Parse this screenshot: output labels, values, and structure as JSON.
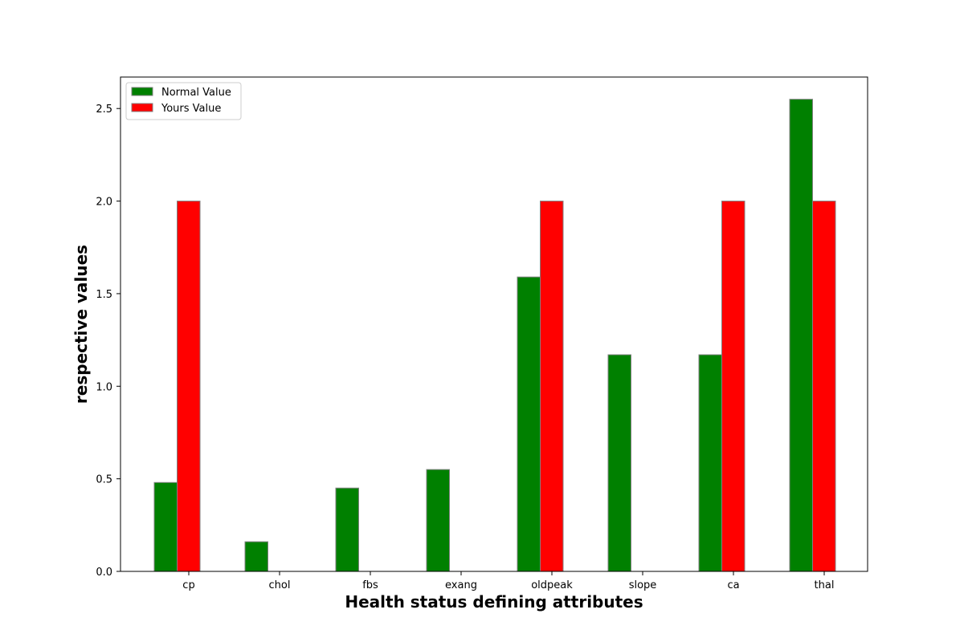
{
  "chart_data": {
    "type": "bar",
    "title": "",
    "xlabel": "Health status defining attributes",
    "ylabel": "respective values",
    "categories": [
      "cp",
      "chol",
      "fbs",
      "exang",
      "oldpeak",
      "slope",
      "ca",
      "thal"
    ],
    "series": [
      {
        "name": "Normal Value",
        "color": "#008000",
        "values": [
          0.48,
          0.16,
          0.45,
          0.55,
          1.59,
          1.17,
          1.17,
          2.55
        ]
      },
      {
        "name": "Yours Value",
        "color": "#ff0000",
        "values": [
          2.0,
          0.0,
          0.0,
          0.0,
          2.0,
          0.0,
          2.0,
          2.0
        ]
      }
    ],
    "ylim": [
      0,
      2.67
    ],
    "yticks": [
      "0.0",
      "0.5",
      "1.0",
      "1.5",
      "2.0",
      "2.5"
    ],
    "grid": false,
    "legend_position": "top-left",
    "bar_edge_color": "#808080"
  }
}
